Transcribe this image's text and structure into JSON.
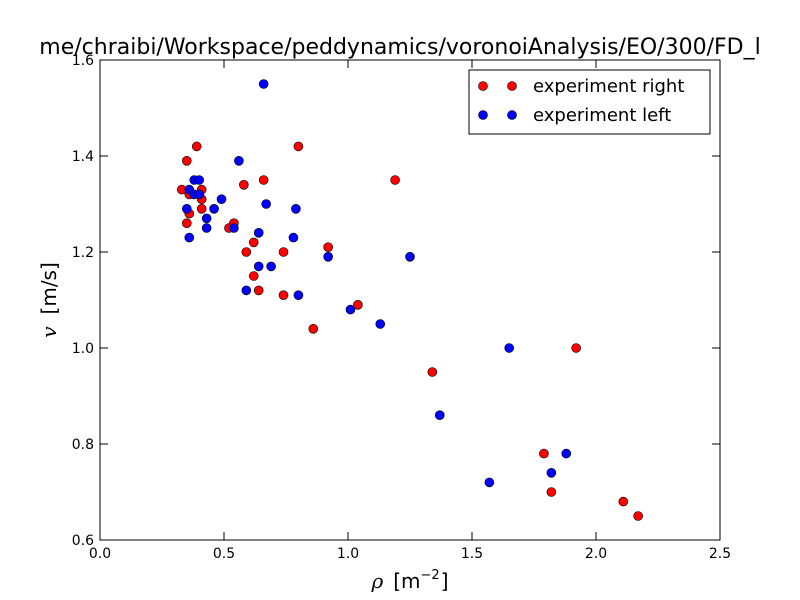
{
  "chart_data": {
    "type": "scatter",
    "title": "me/chraibi/Workspace/peddynamics/voronoiAnalysis/EO/300/FD_l",
    "xlabel": {
      "symbol": "ρ",
      "unit_open": "[m",
      "unit_exp": "−2",
      "unit_close": "]"
    },
    "ylabel": {
      "symbol": "v",
      "unit": "[m/s]"
    },
    "xlim": [
      0.0,
      2.5
    ],
    "ylim": [
      0.6,
      1.6
    ],
    "xticks": [
      "0.0",
      "0.5",
      "1.0",
      "1.5",
      "2.0",
      "2.5"
    ],
    "yticks": [
      "0.6",
      "0.8",
      "1.0",
      "1.2",
      "1.4",
      "1.6"
    ],
    "legend": {
      "location": "upper right"
    },
    "series": [
      {
        "name": "experiment right",
        "color": "#ff0000",
        "points": [
          [
            0.33,
            1.33
          ],
          [
            0.35,
            1.39
          ],
          [
            0.39,
            1.42
          ],
          [
            0.36,
            1.28
          ],
          [
            0.35,
            1.26
          ],
          [
            0.36,
            1.32
          ],
          [
            0.41,
            1.33
          ],
          [
            0.41,
            1.31
          ],
          [
            0.41,
            1.29
          ],
          [
            0.52,
            1.25
          ],
          [
            0.54,
            1.26
          ],
          [
            0.58,
            1.34
          ],
          [
            0.59,
            1.2
          ],
          [
            0.62,
            1.22
          ],
          [
            0.62,
            1.15
          ],
          [
            0.64,
            1.12
          ],
          [
            0.66,
            1.35
          ],
          [
            0.74,
            1.2
          ],
          [
            0.74,
            1.11
          ],
          [
            0.8,
            1.42
          ],
          [
            0.86,
            1.04
          ],
          [
            0.92,
            1.21
          ],
          [
            1.04,
            1.09
          ],
          [
            1.19,
            1.35
          ],
          [
            1.34,
            0.95
          ],
          [
            1.79,
            0.78
          ],
          [
            1.82,
            0.7
          ],
          [
            1.92,
            1.0
          ],
          [
            2.11,
            0.68
          ],
          [
            2.17,
            0.65
          ]
        ]
      },
      {
        "name": "experiment left",
        "color": "#0000ff",
        "points": [
          [
            0.35,
            1.29
          ],
          [
            0.36,
            1.33
          ],
          [
            0.36,
            1.23
          ],
          [
            0.38,
            1.35
          ],
          [
            0.38,
            1.32
          ],
          [
            0.4,
            1.35
          ],
          [
            0.4,
            1.32
          ],
          [
            0.43,
            1.27
          ],
          [
            0.43,
            1.25
          ],
          [
            0.46,
            1.29
          ],
          [
            0.49,
            1.31
          ],
          [
            0.54,
            1.25
          ],
          [
            0.56,
            1.39
          ],
          [
            0.59,
            1.12
          ],
          [
            0.64,
            1.24
          ],
          [
            0.64,
            1.17
          ],
          [
            0.66,
            1.55
          ],
          [
            0.67,
            1.3
          ],
          [
            0.69,
            1.17
          ],
          [
            0.78,
            1.23
          ],
          [
            0.79,
            1.29
          ],
          [
            0.8,
            1.11
          ],
          [
            0.92,
            1.19
          ],
          [
            1.01,
            1.08
          ],
          [
            1.13,
            1.05
          ],
          [
            1.25,
            1.19
          ],
          [
            1.37,
            0.86
          ],
          [
            1.57,
            0.72
          ],
          [
            1.65,
            1.0
          ],
          [
            1.82,
            0.74
          ],
          [
            1.88,
            0.78
          ]
        ]
      }
    ]
  }
}
